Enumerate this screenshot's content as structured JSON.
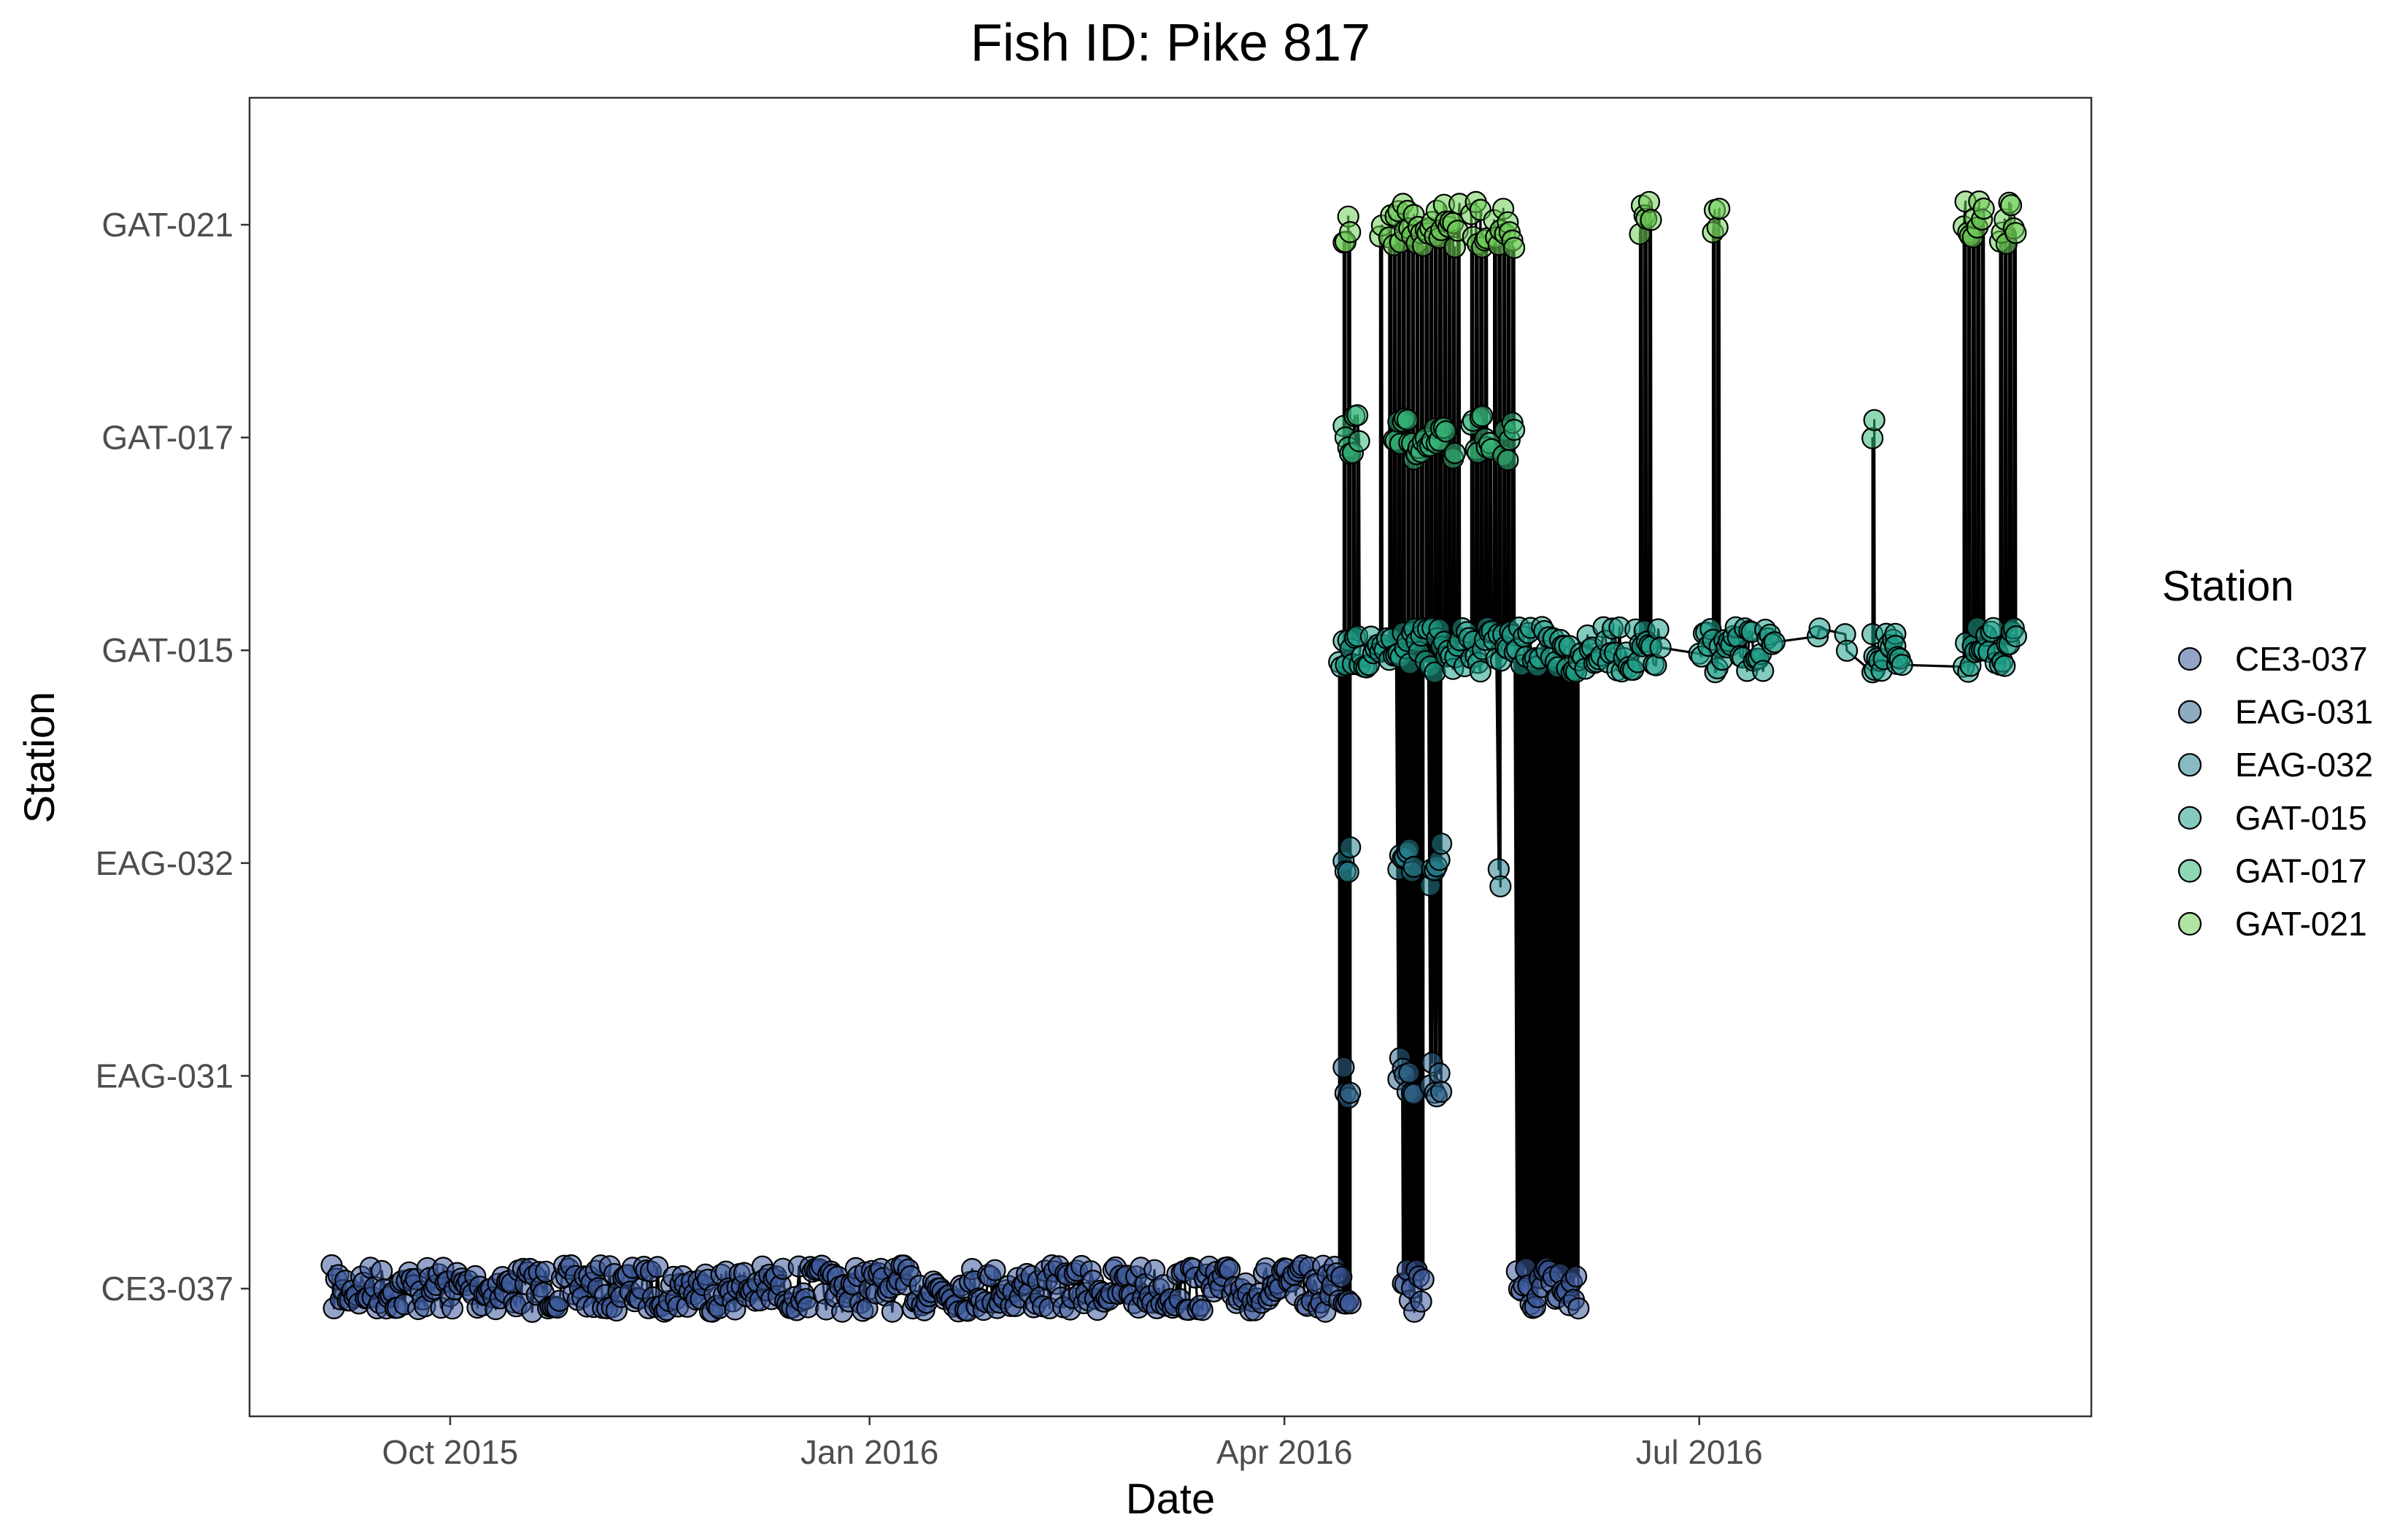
{
  "chart_data": {
    "type": "scatter",
    "title": "Fish ID: Pike 817",
    "xlabel": "Date",
    "ylabel": "Station",
    "x_axis": {
      "type": "date",
      "ticks": [
        "2015-10-01",
        "2016-01-01",
        "2016-04-01",
        "2016-07-01"
      ],
      "tick_labels": [
        "Oct 2015",
        "Jan 2016",
        "Apr 2016",
        "Jul 2016"
      ],
      "range": [
        "2015-08-18",
        "2016-09-25"
      ]
    },
    "y_axis": {
      "type": "category",
      "categories": [
        "CE3-037",
        "EAG-031",
        "EAG-032",
        "GAT-015",
        "GAT-017",
        "GAT-021"
      ]
    },
    "legend": {
      "title": "Station",
      "position": "right",
      "entries": [
        {
          "label": "CE3-037",
          "color": "#3d5a9a"
        },
        {
          "label": "EAG-031",
          "color": "#31688e"
        },
        {
          "label": "EAG-032",
          "color": "#26828e"
        },
        {
          "label": "GAT-015",
          "color": "#1f9e89"
        },
        {
          "label": "GAT-017",
          "color": "#35b779"
        },
        {
          "label": "GAT-021",
          "color": "#6ece58"
        }
      ]
    },
    "grid": false,
    "connected_by_line": true,
    "detections": {
      "CE3-037": {
        "continuous_ranges": [
          [
            "2015-09-05",
            "2016-04-15"
          ],
          [
            "2016-04-27",
            "2016-05-01"
          ],
          [
            "2016-05-22",
            "2016-06-04"
          ]
        ]
      },
      "EAG-031": {
        "dates": [
          "2016-04-14",
          "2016-04-15",
          "2016-04-26",
          "2016-04-27",
          "2016-04-28",
          "2016-04-29",
          "2016-05-03",
          "2016-05-04",
          "2016-05-05"
        ]
      },
      "EAG-032": {
        "dates": [
          "2016-04-14",
          "2016-04-15",
          "2016-04-26",
          "2016-04-27",
          "2016-04-28",
          "2016-04-29",
          "2016-05-03",
          "2016-05-04",
          "2016-05-05",
          "2016-05-18"
        ]
      },
      "GAT-015": {
        "continuous_ranges": [
          [
            "2016-04-13",
            "2016-06-22"
          ],
          [
            "2016-07-01",
            "2016-07-17"
          ],
          [
            "2016-08-08",
            "2016-08-14"
          ],
          [
            "2016-08-28",
            "2016-09-08"
          ]
        ],
        "dates": [
          "2016-07-27",
          "2016-08-02",
          "2016-08-08",
          "2016-08-13"
        ]
      },
      "GAT-017": {
        "dates": [
          "2016-04-14",
          "2016-04-15",
          "2016-04-16",
          "2016-04-17",
          "2016-04-25",
          "2016-04-26",
          "2016-04-27",
          "2016-04-28",
          "2016-04-29",
          "2016-04-30",
          "2016-05-01",
          "2016-05-02",
          "2016-05-03",
          "2016-05-04",
          "2016-05-05",
          "2016-05-06",
          "2016-05-08",
          "2016-05-12",
          "2016-05-13",
          "2016-05-14",
          "2016-05-15",
          "2016-05-16",
          "2016-05-19",
          "2016-05-20",
          "2016-05-21",
          "2016-08-08"
        ]
      },
      "GAT-021": {
        "dates": [
          "2016-04-14",
          "2016-04-15",
          "2016-04-22",
          "2016-04-24",
          "2016-04-25",
          "2016-04-26",
          "2016-04-27",
          "2016-04-28",
          "2016-04-29",
          "2016-04-30",
          "2016-05-01",
          "2016-05-02",
          "2016-05-03",
          "2016-05-04",
          "2016-05-05",
          "2016-05-06",
          "2016-05-07",
          "2016-05-08",
          "2016-05-09",
          "2016-05-12",
          "2016-05-13",
          "2016-05-14",
          "2016-05-15",
          "2016-05-17",
          "2016-05-18",
          "2016-05-19",
          "2016-05-20",
          "2016-05-21",
          "2016-06-18",
          "2016-06-19",
          "2016-06-20",
          "2016-07-04",
          "2016-07-05",
          "2016-08-28",
          "2016-08-29",
          "2016-08-30",
          "2016-08-31",
          "2016-09-01",
          "2016-09-05",
          "2016-09-06",
          "2016-09-07",
          "2016-09-08"
        ]
      }
    }
  }
}
